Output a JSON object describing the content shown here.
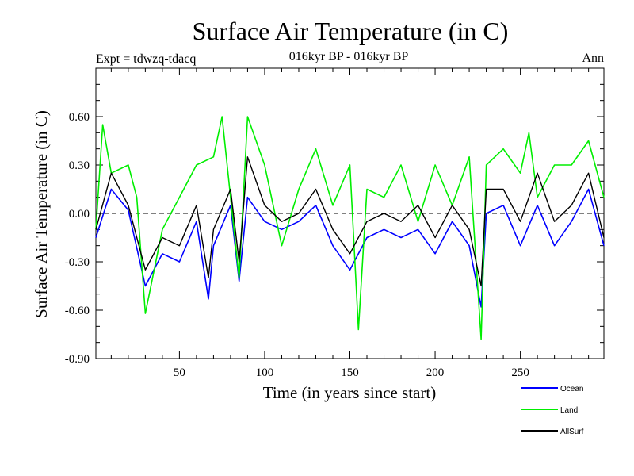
{
  "chart_data": {
    "type": "line",
    "title": "Surface Air Temperature (in C)",
    "subtitle": "016kyr BP - 016kyr BP",
    "left_note": "Expt = tdwzq-tdacq",
    "right_note": "Ann",
    "xlabel": "Time (in years since start)",
    "ylabel": "Surface Air Temperature (in C)",
    "xlim": [
      1,
      299
    ],
    "ylim": [
      -0.9,
      0.9
    ],
    "x_ticks": [
      50,
      100,
      150,
      200,
      250
    ],
    "x_tick_labels": [
      "50",
      "100",
      "150",
      "200",
      "250"
    ],
    "y_ticks": [
      -0.9,
      -0.6,
      -0.3,
      0.0,
      0.3,
      0.6
    ],
    "y_tick_labels": [
      "-0.90",
      "-0.60",
      "-0.30",
      "0.00",
      "0.30",
      "0.60"
    ],
    "zero_line": 0.0,
    "series": [
      {
        "name": "Ocean",
        "color": "#0000ff",
        "x": [
          1,
          10,
          20,
          30,
          40,
          50,
          60,
          67,
          70,
          80,
          85,
          90,
          100,
          110,
          120,
          130,
          140,
          150,
          160,
          170,
          180,
          190,
          200,
          210,
          220,
          227,
          230,
          240,
          250,
          260,
          270,
          280,
          290,
          299
        ],
        "values": [
          -0.15,
          0.15,
          0.02,
          -0.45,
          -0.25,
          -0.3,
          -0.05,
          -0.53,
          -0.2,
          0.05,
          -0.42,
          0.1,
          -0.05,
          -0.1,
          -0.05,
          0.05,
          -0.2,
          -0.35,
          -0.15,
          -0.1,
          -0.15,
          -0.1,
          -0.25,
          -0.05,
          -0.2,
          -0.58,
          0.0,
          0.05,
          -0.2,
          0.05,
          -0.2,
          -0.05,
          0.15,
          -0.2
        ]
      },
      {
        "name": "Land",
        "color": "#00ee00",
        "x": [
          1,
          5,
          10,
          20,
          25,
          30,
          40,
          50,
          60,
          70,
          75,
          80,
          85,
          90,
          100,
          110,
          120,
          130,
          140,
          150,
          155,
          160,
          170,
          180,
          190,
          200,
          210,
          220,
          227,
          230,
          240,
          250,
          255,
          260,
          270,
          280,
          290,
          299
        ],
        "values": [
          -0.1,
          0.55,
          0.25,
          0.3,
          0.1,
          -0.62,
          -0.1,
          0.1,
          0.3,
          0.35,
          0.6,
          0.1,
          -0.4,
          0.6,
          0.3,
          -0.2,
          0.15,
          0.4,
          0.05,
          0.3,
          -0.72,
          0.15,
          0.1,
          0.3,
          -0.05,
          0.3,
          0.05,
          0.35,
          -0.78,
          0.3,
          0.4,
          0.25,
          0.5,
          0.1,
          0.3,
          0.3,
          0.45,
          0.1
        ]
      },
      {
        "name": "AllSurf",
        "color": "#000000",
        "x": [
          1,
          10,
          20,
          30,
          40,
          50,
          60,
          67,
          70,
          80,
          85,
          90,
          100,
          110,
          120,
          130,
          140,
          150,
          160,
          170,
          180,
          190,
          200,
          210,
          220,
          227,
          230,
          240,
          250,
          260,
          270,
          280,
          290,
          299
        ],
        "values": [
          -0.1,
          0.25,
          0.05,
          -0.35,
          -0.15,
          -0.2,
          0.05,
          -0.4,
          -0.1,
          0.15,
          -0.3,
          0.35,
          0.05,
          -0.05,
          0.0,
          0.15,
          -0.1,
          -0.25,
          -0.05,
          0.0,
          -0.05,
          0.05,
          -0.15,
          0.05,
          -0.1,
          -0.45,
          0.15,
          0.15,
          -0.05,
          0.25,
          -0.05,
          0.05,
          0.25,
          -0.15
        ]
      }
    ]
  }
}
